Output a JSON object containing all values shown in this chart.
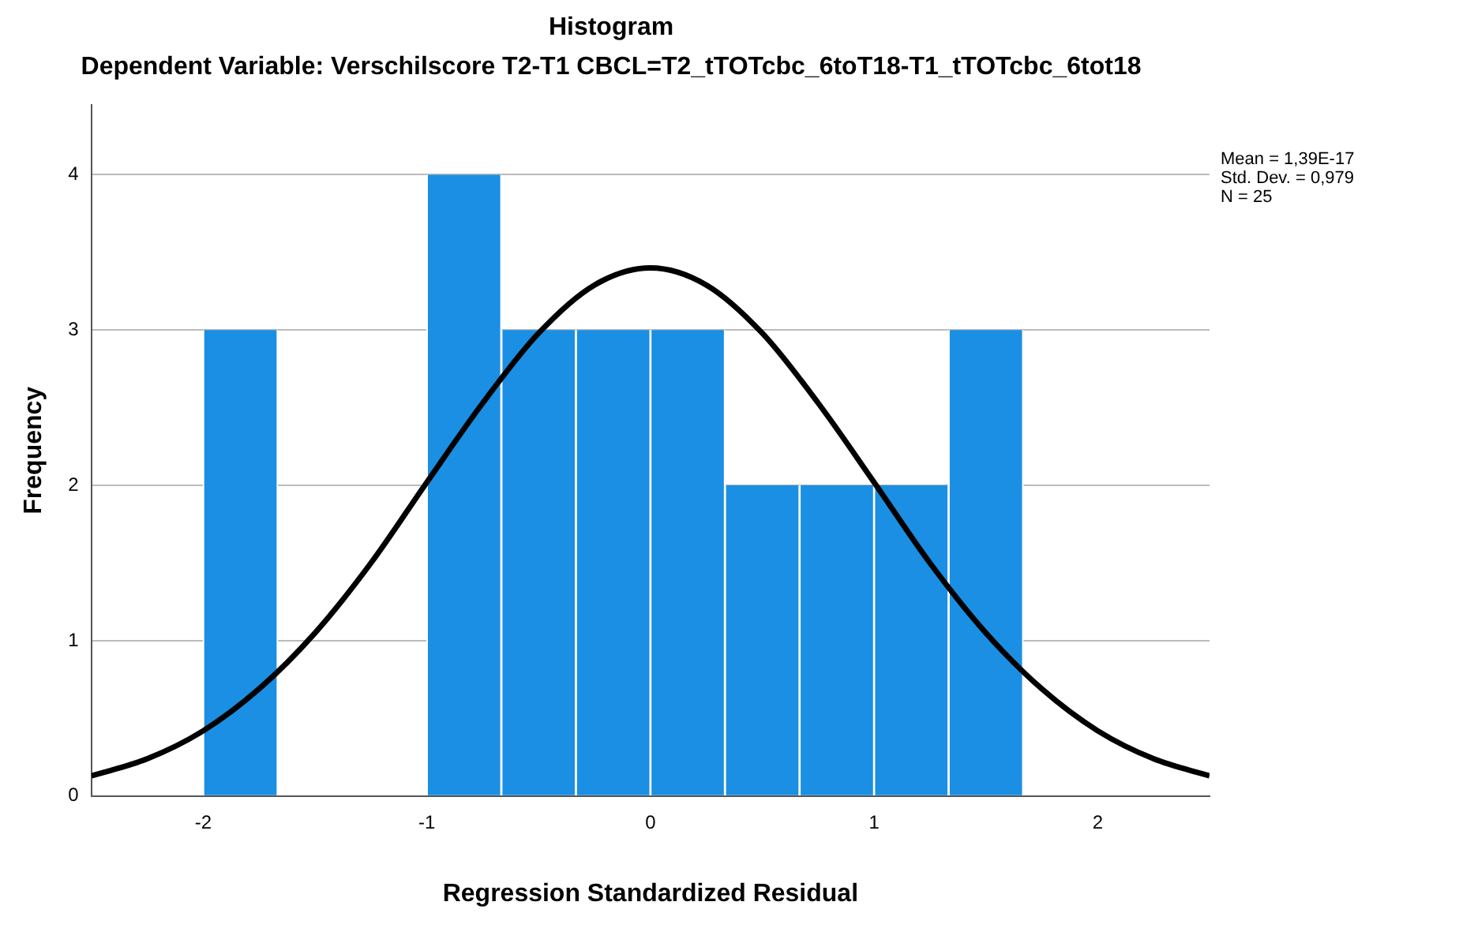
{
  "chart_data": {
    "type": "histogram",
    "title": "Histogram",
    "subtitle": "Dependent Variable: Verschilscore T2-T1 CBCL=T2_tTOTcbc_6toT18-T1_tTOTcbc_6tot18",
    "xlabel": "Regression Standardized Residual",
    "ylabel": "Frequency",
    "bins": [
      -2,
      -1.667,
      -1.333,
      -1,
      -0.667,
      -0.333,
      0,
      0.333,
      0.667,
      1,
      1.333,
      1.667
    ],
    "values": [
      3,
      0,
      0,
      4,
      3,
      3,
      3,
      2,
      2,
      2,
      3
    ],
    "color": "#1a8fe3",
    "series": [
      {
        "type": "line",
        "color": "#000000",
        "x": [
          -2.5,
          -2.25,
          -2,
          -1.75,
          -1.5,
          -1.25,
          -1,
          -0.75,
          -0.5,
          -0.25,
          0,
          0.25,
          0.5,
          0.75,
          1,
          1.25,
          1.5,
          1.75,
          2,
          2.25,
          2.5
        ],
        "values": [
          0.13,
          0.24,
          0.42,
          0.69,
          1.05,
          1.5,
          2.02,
          2.53,
          2.98,
          3.29,
          3.4,
          3.29,
          2.98,
          2.53,
          2.02,
          1.5,
          1.05,
          0.69,
          0.42,
          0.24,
          0.13
        ]
      }
    ],
    "xlim": [
      -2.5,
      2.5
    ],
    "ylim": [
      0,
      4.45
    ],
    "xticks": [
      -2,
      -1,
      0,
      1,
      2
    ],
    "yticks": [
      0,
      1,
      2,
      3,
      4
    ],
    "grid": "y",
    "annotations": [
      "Mean = 1,39E-17",
      "Std. Dev. = 0,979",
      "N = 25"
    ]
  }
}
